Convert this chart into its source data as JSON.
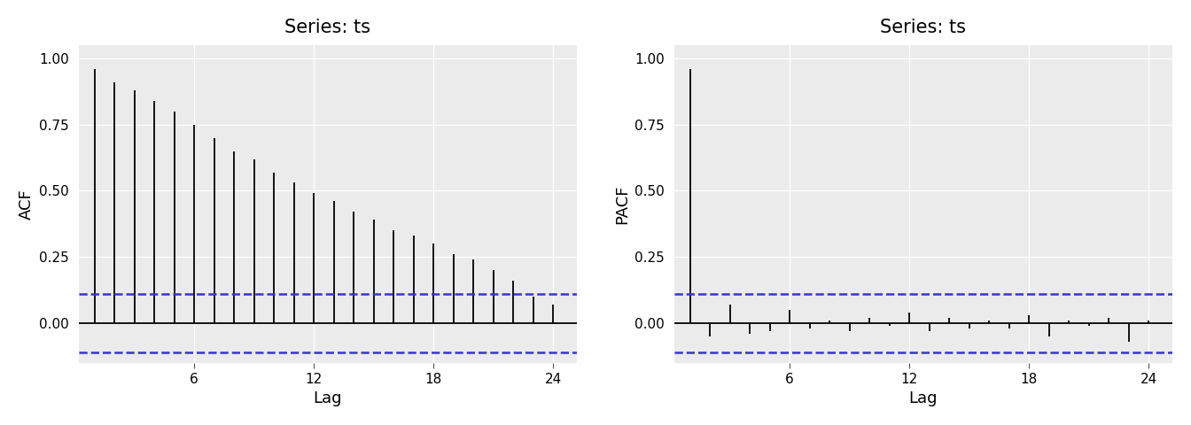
{
  "title": "Series: ts",
  "acf_values": [
    0.96,
    0.91,
    0.88,
    0.84,
    0.8,
    0.75,
    0.7,
    0.65,
    0.62,
    0.57,
    0.53,
    0.49,
    0.46,
    0.42,
    0.39,
    0.35,
    0.33,
    0.3,
    0.26,
    0.24,
    0.2,
    0.16,
    0.1,
    0.07
  ],
  "pacf_values": [
    0.96,
    -0.05,
    0.07,
    -0.04,
    -0.03,
    0.05,
    -0.02,
    0.01,
    -0.03,
    0.02,
    -0.01,
    0.04,
    -0.03,
    0.02,
    -0.02,
    0.01,
    -0.02,
    0.03,
    -0.05,
    0.01,
    -0.01,
    0.02,
    -0.07,
    0.01
  ],
  "acf_lags": [
    1,
    2,
    3,
    4,
    5,
    6,
    7,
    8,
    9,
    10,
    11,
    12,
    13,
    14,
    15,
    16,
    17,
    18,
    19,
    20,
    21,
    22,
    23,
    24
  ],
  "pacf_lags": [
    1,
    2,
    3,
    4,
    5,
    6,
    7,
    8,
    9,
    10,
    11,
    12,
    13,
    14,
    15,
    16,
    17,
    18,
    19,
    20,
    21,
    22,
    23,
    24
  ],
  "ci_upper": 0.11,
  "ci_lower": -0.11,
  "ylabel_acf": "ACF",
  "ylabel_pacf": "PACF",
  "xlabel": "Lag",
  "ylim": [
    -0.15,
    1.05
  ],
  "yticks": [
    0.0,
    0.25,
    0.5,
    0.75,
    1.0
  ],
  "xticks": [
    6,
    12,
    18,
    24
  ],
  "xlim": [
    0.2,
    25.2
  ],
  "background_color": "#EBEBEB",
  "outer_background": "#FFFFFF",
  "bar_color": "#000000",
  "ci_color": "#3535CC",
  "zero_line_color": "#000000",
  "grid_color": "#FFFFFF",
  "title_fontsize": 15,
  "label_fontsize": 13,
  "tick_fontsize": 11,
  "vline_lw": 1.3
}
